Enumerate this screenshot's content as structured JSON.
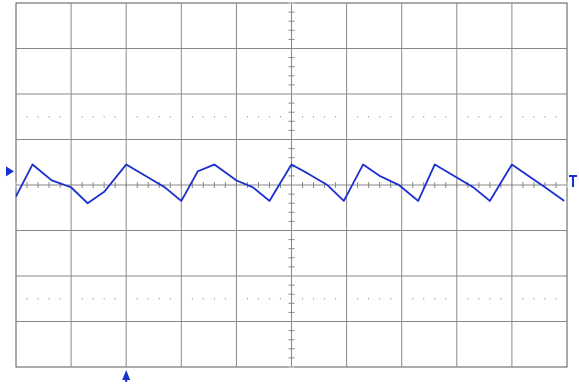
{
  "chart_data": {
    "type": "line",
    "title": "",
    "xlabel": "",
    "ylabel": "",
    "grid": true,
    "divisions": {
      "x": 10,
      "y": 8
    },
    "subdivisions_per_division": 5,
    "xlim": [
      0,
      10
    ],
    "ylim": [
      -4,
      4
    ],
    "colors": {
      "trace": "#1a2fd0",
      "grid": "#888888",
      "markers": "#1a2fd0",
      "background": "#ffffff"
    },
    "markers": {
      "channel_ground_level": 0.3,
      "trigger_position": 2.0,
      "trigger_level": 0.0
    },
    "series": [
      {
        "x": [
          0.0,
          0.3,
          0.65,
          1.0,
          1.3,
          1.6,
          2.0,
          2.35,
          2.7,
          3.0,
          3.3,
          3.6,
          4.0,
          4.3,
          4.6,
          5.0,
          5.3,
          5.65,
          5.95,
          6.3,
          6.6,
          6.95,
          7.3,
          7.6,
          7.95,
          8.3,
          8.6,
          9.0,
          9.3,
          9.6,
          9.95
        ],
        "y": [
          -0.25,
          0.45,
          0.1,
          -0.05,
          -0.4,
          -0.15,
          0.45,
          0.2,
          -0.05,
          -0.35,
          0.3,
          0.45,
          0.1,
          -0.05,
          -0.35,
          0.45,
          0.25,
          0.0,
          -0.35,
          0.45,
          0.2,
          0.0,
          -0.35,
          0.45,
          0.2,
          -0.05,
          -0.35,
          0.45,
          0.2,
          -0.05,
          -0.35
        ]
      }
    ]
  }
}
